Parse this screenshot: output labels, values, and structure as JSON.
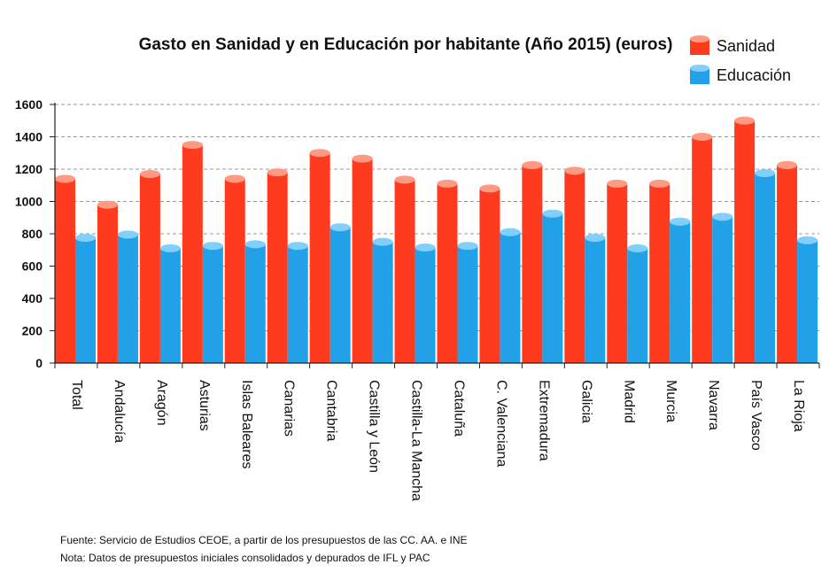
{
  "chart_data": {
    "type": "bar",
    "title": "Gasto en Sanidad y en Educación por habitante (Año 2015) (euros)",
    "xlabel": "",
    "ylabel": "",
    "ylim": [
      0,
      1600
    ],
    "yticks": [
      "0",
      "200",
      "400",
      "600",
      "800",
      "1000",
      "1200",
      "1400",
      "1600"
    ],
    "grid": true,
    "legend_position": "top-right",
    "categories": [
      "Total",
      "Andalucía",
      "Aragón",
      "Asturias",
      "Islas Baleares",
      "Canarias",
      "Cantabria",
      "Castilla y León",
      "Castilla-La Mancha",
      "Cataluña",
      "C. Valenciana",
      "Extremadura",
      "Galicia",
      "Madrid",
      "Murcia",
      "Navarra",
      "País Vasco",
      "La Rioja"
    ],
    "series": [
      {
        "name": "Sanidad",
        "color": "#ff3b1f",
        "top_color": "#ff9a82",
        "values": [
          1140,
          980,
          1170,
          1350,
          1140,
          1180,
          1300,
          1265,
          1135,
          1110,
          1080,
          1225,
          1190,
          1110,
          1110,
          1400,
          1500,
          1225
        ]
      },
      {
        "name": "Educación",
        "color": "#22a0e8",
        "top_color": "#7fd0ff",
        "values": [
          775,
          795,
          710,
          725,
          735,
          725,
          840,
          750,
          715,
          725,
          810,
          925,
          775,
          710,
          875,
          905,
          1175,
          760
        ]
      }
    ]
  },
  "notes": {
    "source": "Fuente: Servicio de Estudios CEOE, a partir de los presupuestos de las CC. AA. e INE",
    "note": "Nota: Datos de presupuestos  iniciales consolidados  y depurados de IFL y PAC"
  }
}
